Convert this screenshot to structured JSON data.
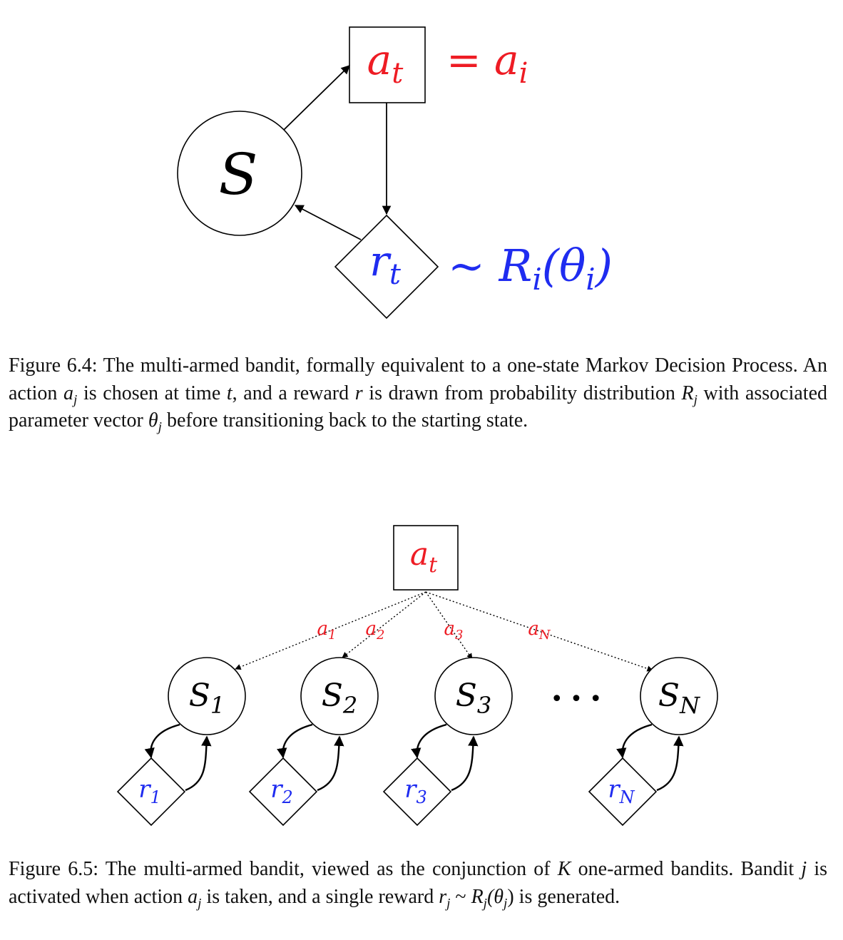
{
  "fig64": {
    "state_label": "S",
    "action_label": "a",
    "action_sub": "t",
    "action_eq": "= a",
    "action_eq_sub": "i",
    "reward_label": "r",
    "reward_sub": "t",
    "reward_dist": "~ R",
    "reward_dist_sub": "i",
    "reward_dist_arg": "(θ",
    "reward_dist_arg_sub": "i",
    "reward_dist_close": ")",
    "caption": {
      "p1": "Figure 6.4: The multi-armed bandit, formally equivalent to a one-state Markov Decision Process. An action ",
      "v1": "a",
      "v1s": "j",
      "p2": " is chosen at time ",
      "v2": "t",
      "p3": ", and a reward ",
      "v3": "r",
      "p4": " is drawn from probability distribution ",
      "v4": "R",
      "v4s": "j",
      "p5": " with associated parameter vector ",
      "v5": "θ",
      "v5s": "j",
      "p6": " before transitioning back to the starting state."
    }
  },
  "fig65": {
    "action_label": "a",
    "action_sub": "t",
    "edge_labels": [
      {
        "l": "a",
        "s": "1"
      },
      {
        "l": "a",
        "s": "2"
      },
      {
        "l": "a",
        "s": "3"
      },
      {
        "l": "a",
        "s": "N"
      }
    ],
    "states": [
      {
        "l": "S",
        "s": "1"
      },
      {
        "l": "S",
        "s": "2"
      },
      {
        "l": "S",
        "s": "3"
      },
      {
        "l": "S",
        "s": "N"
      }
    ],
    "rewards": [
      {
        "l": "r",
        "s": "1"
      },
      {
        "l": "r",
        "s": "2"
      },
      {
        "l": "r",
        "s": "3"
      },
      {
        "l": "r",
        "s": "N"
      }
    ],
    "ellipsis": "• • •",
    "caption": {
      "p1": "Figure 6.5: The multi-armed bandit, viewed as the conjunction of ",
      "v1": "K",
      "p2": " one-armed bandits. Bandit ",
      "v2": "j",
      "p3": " is activated when action ",
      "v3": "a",
      "v3s": "j",
      "p4": " is taken, and a single reward ",
      "v4": "r",
      "v4s": "j",
      "p5": " ~ ",
      "v5": "R",
      "v5s": "j",
      "v6": "(θ",
      "v6s": "j",
      "v6c": ")",
      "p6": " is generated."
    }
  },
  "colors": {
    "action": "#ee1c24",
    "reward": "#1f2cf0",
    "ink": "#000000"
  }
}
